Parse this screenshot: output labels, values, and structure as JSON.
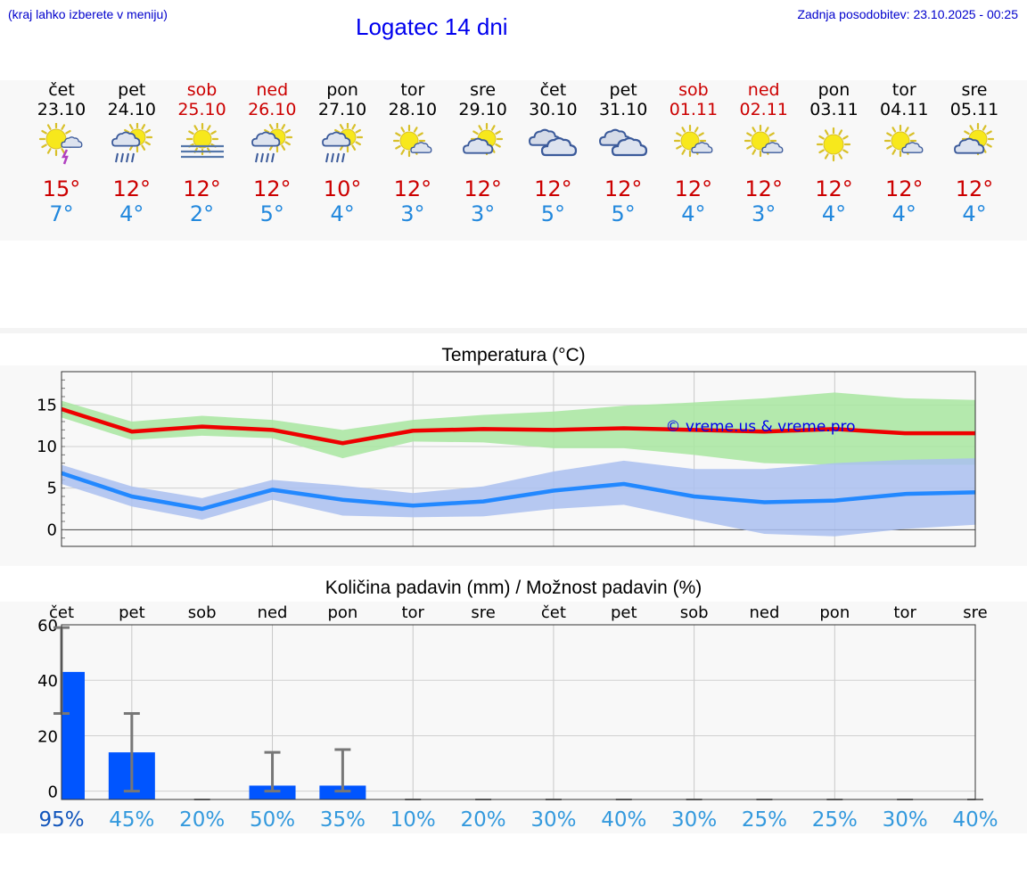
{
  "header": {
    "hint": "(kraj lahko izberete v meniju)",
    "title": "Logatec 14 dni",
    "updated": "Zadnja posodobitev: 23.10.2025 - 00:25"
  },
  "days": [
    {
      "name": "čet",
      "date": "23.10",
      "icon": "sun-cloud-storm-icon",
      "max": "15°",
      "min": "7°",
      "weekend": false
    },
    {
      "name": "pet",
      "date": "24.10",
      "icon": "sun-cloud-rain-icon",
      "max": "12°",
      "min": "4°",
      "weekend": false
    },
    {
      "name": "sob",
      "date": "25.10",
      "icon": "sun-fog-icon",
      "max": "12°",
      "min": "2°",
      "weekend": true
    },
    {
      "name": "ned",
      "date": "26.10",
      "icon": "sun-cloud-rain-icon",
      "max": "12°",
      "min": "5°",
      "weekend": true
    },
    {
      "name": "pon",
      "date": "27.10",
      "icon": "sun-cloud-rain-icon",
      "max": "10°",
      "min": "4°",
      "weekend": false
    },
    {
      "name": "tor",
      "date": "28.10",
      "icon": "sun-small-cloud-icon",
      "max": "12°",
      "min": "3°",
      "weekend": false
    },
    {
      "name": "sre",
      "date": "29.10",
      "icon": "sun-cloud-icon",
      "max": "12°",
      "min": "3°",
      "weekend": false
    },
    {
      "name": "čet",
      "date": "30.10",
      "icon": "cloudy-icon",
      "max": "12°",
      "min": "5°",
      "weekend": false
    },
    {
      "name": "pet",
      "date": "31.10",
      "icon": "cloudy-icon",
      "max": "12°",
      "min": "5°",
      "weekend": false
    },
    {
      "name": "sob",
      "date": "01.11",
      "icon": "sun-small-cloud-icon",
      "max": "12°",
      "min": "4°",
      "weekend": true
    },
    {
      "name": "ned",
      "date": "02.11",
      "icon": "sun-small-cloud-icon",
      "max": "12°",
      "min": "3°",
      "weekend": true
    },
    {
      "name": "pon",
      "date": "03.11",
      "icon": "sun-icon",
      "max": "12°",
      "min": "4°",
      "weekend": false
    },
    {
      "name": "tor",
      "date": "04.11",
      "icon": "sun-small-cloud-icon",
      "max": "12°",
      "min": "4°",
      "weekend": false
    },
    {
      "name": "sre",
      "date": "05.11",
      "icon": "sun-cloud-icon",
      "max": "12°",
      "min": "4°",
      "weekend": false
    }
  ],
  "colors": {
    "max_line": "#ee0000",
    "min_line": "#2288ff",
    "max_band": "#a8e6a0",
    "min_band": "#aabff0",
    "bar": "#0055ff",
    "weekend": "#cc0000",
    "prob_dark": "#1155bb",
    "prob_light": "#3399dd"
  },
  "chart_data": [
    {
      "type": "line",
      "title": "Temperatura (°C)",
      "categories": [
        "23.10",
        "24.10",
        "25.10",
        "26.10",
        "27.10",
        "28.10",
        "29.10",
        "30.10",
        "31.10",
        "01.11",
        "02.11",
        "03.11",
        "04.11",
        "05.11"
      ],
      "ylim": [
        -2,
        19
      ],
      "yticks": [
        0,
        5,
        10,
        15
      ],
      "grid": true,
      "watermark": "© vreme.us & vreme.pro",
      "series": [
        {
          "values": [
            14.5,
            11.8,
            12.4,
            12.0,
            10.4,
            11.9,
            12.1,
            12.0,
            12.2,
            12.0,
            11.8,
            12.1,
            11.6,
            11.6
          ],
          "band_low": [
            13.5,
            10.8,
            11.3,
            11.0,
            8.6,
            10.6,
            10.5,
            9.8,
            9.8,
            9.0,
            8.0,
            7.8,
            7.8,
            7.8
          ],
          "band_high": [
            15.5,
            13.0,
            13.7,
            13.2,
            12.0,
            13.2,
            13.8,
            14.2,
            14.9,
            15.3,
            15.8,
            16.5,
            15.8,
            15.6
          ]
        },
        {
          "values": [
            6.8,
            4.0,
            2.5,
            4.8,
            3.6,
            2.9,
            3.4,
            4.7,
            5.5,
            4.0,
            3.3,
            3.5,
            4.3,
            4.5
          ],
          "band_low": [
            5.5,
            2.8,
            1.2,
            3.6,
            1.7,
            1.5,
            1.6,
            2.5,
            3.0,
            1.2,
            -0.5,
            -0.8,
            0.1,
            0.6
          ],
          "band_high": [
            7.8,
            5.2,
            3.8,
            6.0,
            5.3,
            4.4,
            5.2,
            7.0,
            8.3,
            7.3,
            7.3,
            8.0,
            8.4,
            8.6
          ]
        }
      ]
    },
    {
      "type": "bar",
      "title": "Količina padavin (mm) / Možnost padavin (%)",
      "categories": [
        "čet",
        "pet",
        "sob",
        "ned",
        "pon",
        "tor",
        "sre",
        "čet",
        "pet",
        "sob",
        "ned",
        "pon",
        "tor",
        "sre"
      ],
      "ylim": [
        -3,
        60
      ],
      "yticks": [
        0,
        20,
        40,
        60
      ],
      "grid": true,
      "values": [
        43,
        14,
        0,
        2,
        2,
        0,
        0,
        0,
        0,
        0,
        0,
        0,
        0,
        0
      ],
      "err_low": [
        28,
        0,
        0,
        0,
        0,
        0,
        0,
        0,
        0,
        0,
        0,
        0,
        0,
        0
      ],
      "err_high": [
        59,
        28,
        0,
        14,
        15,
        0,
        0,
        0,
        0,
        0,
        0,
        0,
        0,
        0
      ],
      "probability": [
        "95%",
        "45%",
        "20%",
        "50%",
        "35%",
        "10%",
        "20%",
        "30%",
        "40%",
        "30%",
        "25%",
        "25%",
        "30%",
        "40%"
      ]
    }
  ]
}
